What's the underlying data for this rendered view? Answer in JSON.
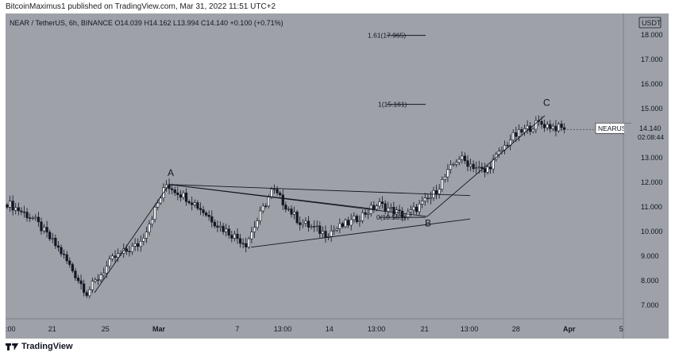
{
  "header": {
    "publisher_line": "BitcoinMaximus1 published on TradingView.com, Mar 31, 2022 11:51 UTC+2"
  },
  "legend": {
    "symbol": "NEAR / TetherUS, 6h, BINANCE",
    "o_label": "O",
    "o_value": "14.039",
    "h_label": "H",
    "h_value": "14.162",
    "l_label": "L",
    "l_value": "13.994",
    "c_label": "C",
    "c_value": "14.140",
    "change": "+0.100 (+0.71%)"
  },
  "footer": {
    "logo_text": "TradingView"
  },
  "colors": {
    "background": "#9ea1a8",
    "up": "#ffffff",
    "down": "#131722",
    "line": "#131722",
    "text": "#131722"
  },
  "chart_data": {
    "type": "candlestick",
    "currency_label": "USDT",
    "ylim": [
      6.7,
      18.5
    ],
    "y_ticks": [
      "7.000",
      "8.000",
      "9.000",
      "10.000",
      "11.000",
      "12.000",
      "13.000",
      "14.000",
      "15.000",
      "16.000",
      "17.000",
      "18.000"
    ],
    "x_ticks": [
      ":00",
      "21",
      "25",
      "Mar",
      "7",
      "13:00",
      "14",
      "13:00",
      "21",
      "13:00",
      "28",
      "Apr",
      "5"
    ],
    "last_price_label": "NEARUSDT",
    "last_price": "14.140",
    "countdown": "02:08:44",
    "fib_levels": [
      {
        "label": "1.61(17.965)",
        "value": 17.965
      },
      {
        "label": "1(15.161)",
        "value": 15.161
      },
      {
        "label": "0(10.565)",
        "value": 10.565
      }
    ],
    "wave_labels": [
      "A",
      "B",
      "C"
    ],
    "price_path_anchors": [
      11.15,
      10.5,
      9.2,
      7.5,
      8.9,
      9.5,
      11.9,
      11.2,
      10.2,
      9.5,
      11.7,
      10.4,
      9.9,
      10.4,
      11.1,
      10.6,
      11.4,
      13.0,
      12.4,
      13.8,
      14.4,
      14.14
    ]
  }
}
